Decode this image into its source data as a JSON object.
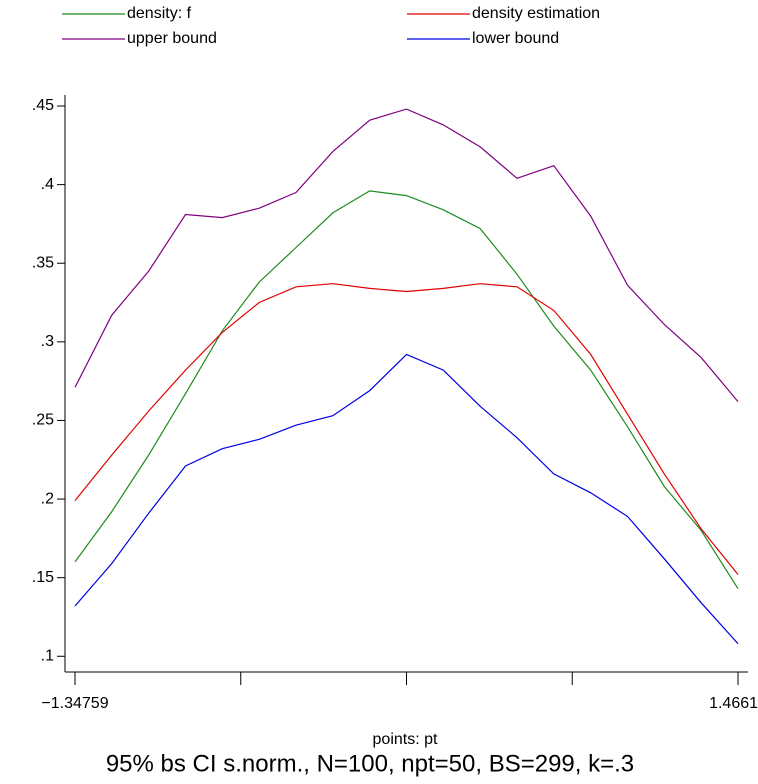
{
  "chart_data": {
    "type": "line",
    "x_label": "points: pt",
    "caption": "95% bs CI s.norm., N=100, npt=50, BS=299, k=.3",
    "x": [
      -1.34759,
      -1.19127,
      -1.03495,
      -0.87863,
      -0.72231,
      -0.56599,
      -0.40967,
      -0.25335,
      -0.09703,
      0.0593,
      0.21561,
      0.37193,
      0.52825,
      0.68457,
      0.84089,
      0.99721,
      1.15353,
      1.30985,
      1.46619
    ],
    "series": [
      {
        "name": "density: f",
        "color": "#1f8a1f",
        "values": [
          0.16,
          0.192,
          0.228,
          0.267,
          0.307,
          0.338,
          0.36,
          0.382,
          0.396,
          0.393,
          0.384,
          0.372,
          0.343,
          0.31,
          0.282,
          0.246,
          0.208,
          0.18,
          0.143
        ]
      },
      {
        "name": "density estimation",
        "color": "#e00000",
        "values": [
          0.199,
          0.228,
          0.256,
          0.282,
          0.306,
          0.325,
          0.335,
          0.337,
          0.334,
          0.332,
          0.334,
          0.337,
          0.335,
          0.32,
          0.292,
          0.254,
          0.216,
          0.181,
          0.152
        ]
      },
      {
        "name": "upper bound",
        "color": "#800080",
        "values": [
          0.271,
          0.317,
          0.345,
          0.381,
          0.379,
          0.385,
          0.395,
          0.421,
          0.441,
          0.448,
          0.438,
          0.424,
          0.404,
          0.412,
          0.38,
          0.336,
          0.311,
          0.29,
          0.262
        ]
      },
      {
        "name": "lower bound",
        "color": "#0000e0",
        "values": [
          0.132,
          0.159,
          0.191,
          0.221,
          0.232,
          0.238,
          0.247,
          0.253,
          0.269,
          0.292,
          0.282,
          0.259,
          0.239,
          0.216,
          0.204,
          0.189,
          0.162,
          0.134,
          0.108
        ]
      }
    ],
    "xlim": [
      -1.34759,
      1.46619
    ],
    "xticks": [
      {
        "value": -1.34759,
        "label": "−1.34759"
      },
      1.46619
    ],
    "ylim": [
      0.09,
      0.457
    ],
    "yticks": [
      {
        "value": 0.1,
        "label": ".1"
      },
      {
        "value": 0.15,
        "label": ".15"
      },
      {
        "value": 0.2,
        "label": ".2"
      },
      {
        "value": 0.25,
        "label": ".25"
      },
      {
        "value": 0.3,
        "label": ".3"
      },
      {
        "value": 0.35,
        "label": ".35"
      },
      {
        "value": 0.4,
        "label": ".4"
      },
      {
        "value": 0.45,
        "label": ".45"
      }
    ]
  }
}
